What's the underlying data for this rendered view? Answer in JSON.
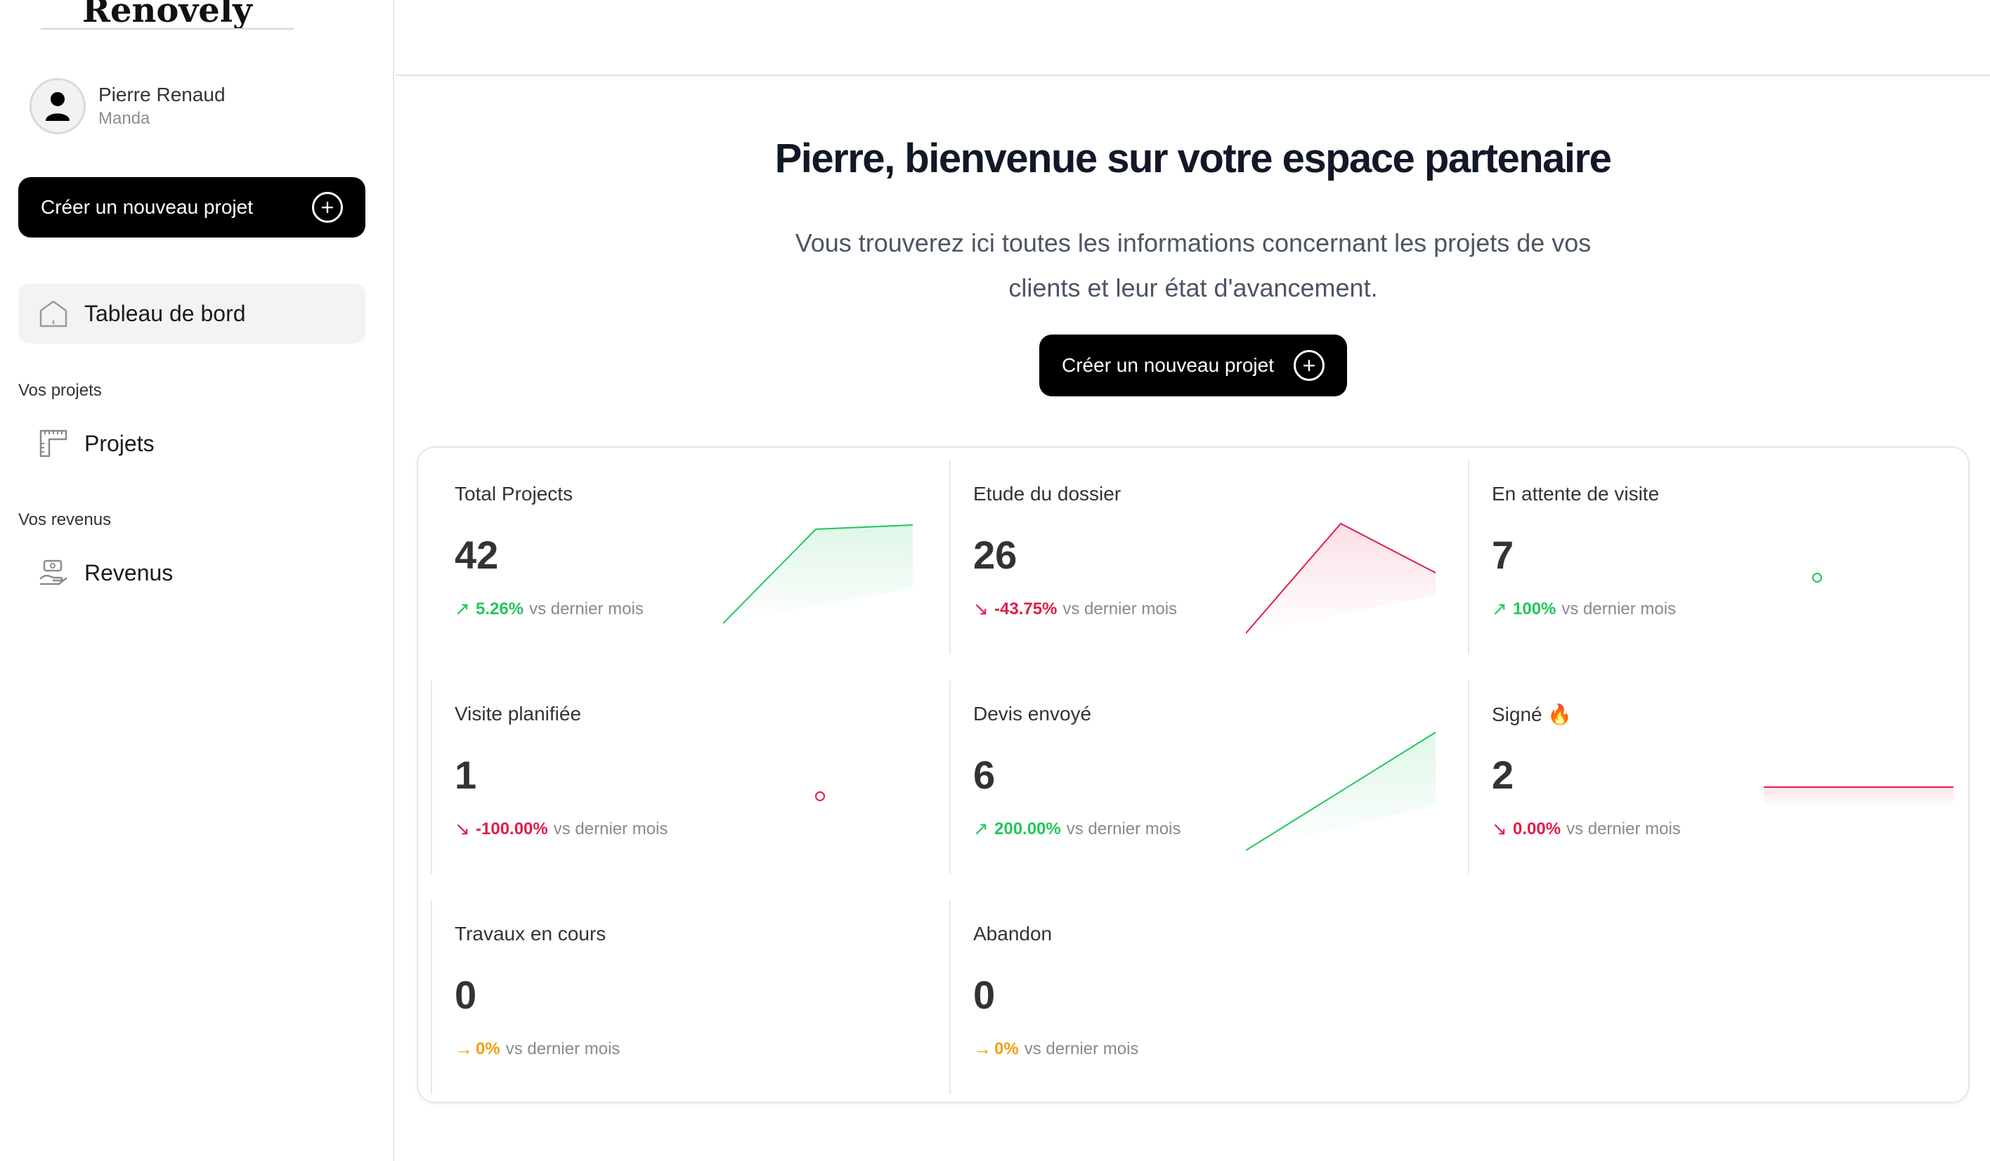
{
  "sidebar": {
    "logo": "Renovely",
    "user": {
      "name": "Pierre Renaud",
      "company": "Manda"
    },
    "create_button": "Créer un nouveau projet",
    "dashboard_label": "Tableau de bord",
    "projects_section": "Vos projets",
    "projects_label": "Projets",
    "revenue_section": "Vos revenus",
    "revenue_label": "Revenus"
  },
  "main": {
    "title": "Pierre, bienvenue sur votre espace partenaire",
    "subtitle": "Vous trouverez ici toutes les informations concernant les projets de vos clients et leur état d'avancement.",
    "create_button": "Créer un nouveau projet"
  },
  "colors": {
    "up": "#22c55e",
    "down": "#e11d48",
    "flat": "#f59e0b",
    "primary": "#000000"
  },
  "stats": [
    {
      "title": "Total Projects",
      "value": "42",
      "pct": "5.26%",
      "suffix": "vs dernier mois",
      "trend": "up"
    },
    {
      "title": "Etude du dossier",
      "value": "26",
      "pct": "-43.75%",
      "suffix": "vs dernier mois",
      "trend": "down"
    },
    {
      "title": "En attente de visite",
      "value": "7",
      "pct": "100%",
      "suffix": "vs dernier mois",
      "trend": "up"
    },
    {
      "title": "Visite planifiée",
      "value": "1",
      "pct": "-100.00%",
      "suffix": "vs dernier mois",
      "trend": "down"
    },
    {
      "title": "Devis envoyé",
      "value": "6",
      "pct": "200.00%",
      "suffix": "vs dernier mois",
      "trend": "up"
    },
    {
      "title": "Signé 🔥",
      "value": "2",
      "pct": "0.00%",
      "suffix": "vs dernier mois",
      "trend": "down"
    },
    {
      "title": "Travaux en cours",
      "value": "0",
      "pct": "0%",
      "suffix": "vs dernier mois",
      "trend": "flat"
    },
    {
      "title": "Abandon",
      "value": "0",
      "pct": "0%",
      "suffix": "vs dernier mois",
      "trend": "flat"
    }
  ]
}
